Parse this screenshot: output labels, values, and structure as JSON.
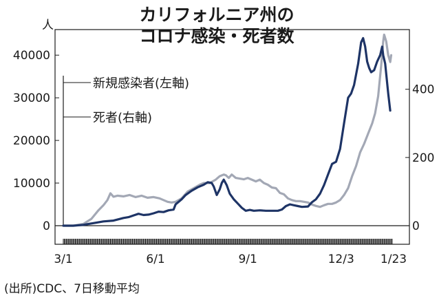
{
  "chart_data": {
    "type": "line",
    "title": [
      "カリフォルニア州の",
      "コロナ感染・死者数"
    ],
    "ylabel_left_unit": "人",
    "y_left_ticks": [
      "0",
      "10000",
      "20000",
      "30000",
      "40000"
    ],
    "y_right_ticks": [
      "0",
      "200",
      "400"
    ],
    "ylim_left": [
      0,
      46000
    ],
    "ylim_right": [
      0,
      575
    ],
    "x_ticks": [
      {
        "label": "3/1",
        "day": 0
      },
      {
        "label": "6/1",
        "day": 92
      },
      {
        "label": "9/1",
        "day": 184
      },
      {
        "label": "12/3",
        "day": 277
      },
      {
        "label": "1/23",
        "day": 328
      }
    ],
    "annotations": [
      "新規感染者(左軸)",
      "死者(右軸)"
    ],
    "source": "(出所)CDC、7日移動平均",
    "series": [
      {
        "name": "新規感染者",
        "axis": "left",
        "color": "#1e3466",
        "points": [
          [
            0,
            0
          ],
          [
            10,
            0
          ],
          [
            20,
            200
          ],
          [
            30,
            600
          ],
          [
            40,
            1000
          ],
          [
            50,
            1200
          ],
          [
            55,
            1500
          ],
          [
            60,
            1800
          ],
          [
            65,
            2000
          ],
          [
            70,
            2400
          ],
          [
            75,
            2800
          ],
          [
            80,
            2500
          ],
          [
            85,
            2600
          ],
          [
            90,
            2900
          ],
          [
            95,
            3300
          ],
          [
            100,
            3200
          ],
          [
            105,
            3600
          ],
          [
            110,
            3800
          ],
          [
            112,
            5000
          ],
          [
            118,
            6200
          ],
          [
            122,
            7200
          ],
          [
            128,
            8200
          ],
          [
            134,
            9000
          ],
          [
            140,
            9600
          ],
          [
            144,
            10200
          ],
          [
            148,
            10000
          ],
          [
            150,
            9200
          ],
          [
            153,
            7200
          ],
          [
            156,
            8500
          ],
          [
            158,
            10000
          ],
          [
            160,
            10800
          ],
          [
            163,
            9500
          ],
          [
            166,
            7500
          ],
          [
            170,
            6200
          ],
          [
            174,
            5200
          ],
          [
            178,
            4200
          ],
          [
            182,
            3500
          ],
          [
            186,
            3700
          ],
          [
            190,
            3500
          ],
          [
            196,
            3600
          ],
          [
            202,
            3500
          ],
          [
            208,
            3500
          ],
          [
            214,
            3500
          ],
          [
            218,
            3800
          ],
          [
            222,
            4600
          ],
          [
            226,
            5000
          ],
          [
            230,
            4800
          ],
          [
            234,
            4600
          ],
          [
            238,
            4400
          ],
          [
            244,
            4500
          ],
          [
            248,
            5500
          ],
          [
            252,
            6200
          ],
          [
            256,
            7500
          ],
          [
            260,
            9500
          ],
          [
            264,
            12000
          ],
          [
            268,
            14500
          ],
          [
            272,
            15000
          ],
          [
            276,
            18000
          ],
          [
            280,
            24000
          ],
          [
            284,
            30000
          ],
          [
            287,
            31000
          ],
          [
            290,
            33000
          ],
          [
            294,
            38000
          ],
          [
            297,
            43000
          ],
          [
            299,
            44000
          ],
          [
            301,
            42000
          ],
          [
            303,
            38500
          ],
          [
            305,
            37000
          ],
          [
            307,
            36000
          ],
          [
            310,
            36500
          ],
          [
            313,
            38500
          ],
          [
            316,
            40000
          ],
          [
            318,
            42000
          ],
          [
            319,
            40000
          ],
          [
            321,
            38000
          ],
          [
            324,
            31000
          ],
          [
            326,
            27000
          ]
        ]
      },
      {
        "name": "死者",
        "axis": "right",
        "color": "#a3a8b5",
        "points": [
          [
            0,
            0
          ],
          [
            10,
            0
          ],
          [
            20,
            5
          ],
          [
            28,
            20
          ],
          [
            35,
            45
          ],
          [
            40,
            60
          ],
          [
            44,
            75
          ],
          [
            47,
            95
          ],
          [
            50,
            85
          ],
          [
            54,
            88
          ],
          [
            60,
            86
          ],
          [
            66,
            90
          ],
          [
            72,
            84
          ],
          [
            78,
            88
          ],
          [
            84,
            82
          ],
          [
            90,
            84
          ],
          [
            96,
            80
          ],
          [
            100,
            75
          ],
          [
            104,
            70
          ],
          [
            108,
            68
          ],
          [
            112,
            70
          ],
          [
            118,
            80
          ],
          [
            124,
            100
          ],
          [
            130,
            110
          ],
          [
            136,
            120
          ],
          [
            140,
            125
          ],
          [
            146,
            125
          ],
          [
            152,
            135
          ],
          [
            156,
            145
          ],
          [
            160,
            150
          ],
          [
            162,
            148
          ],
          [
            165,
            140
          ],
          [
            168,
            150
          ],
          [
            172,
            140
          ],
          [
            176,
            138
          ],
          [
            180,
            136
          ],
          [
            184,
            140
          ],
          [
            188,
            135
          ],
          [
            192,
            130
          ],
          [
            196,
            135
          ],
          [
            200,
            125
          ],
          [
            204,
            120
          ],
          [
            208,
            112
          ],
          [
            212,
            110
          ],
          [
            216,
            96
          ],
          [
            220,
            92
          ],
          [
            224,
            80
          ],
          [
            228,
            75
          ],
          [
            232,
            72
          ],
          [
            236,
            72
          ],
          [
            240,
            70
          ],
          [
            244,
            68
          ],
          [
            248,
            62
          ],
          [
            252,
            58
          ],
          [
            256,
            55
          ],
          [
            260,
            60
          ],
          [
            264,
            64
          ],
          [
            268,
            64
          ],
          [
            272,
            68
          ],
          [
            276,
            75
          ],
          [
            280,
            90
          ],
          [
            284,
            110
          ],
          [
            288,
            145
          ],
          [
            292,
            175
          ],
          [
            296,
            215
          ],
          [
            300,
            240
          ],
          [
            304,
            270
          ],
          [
            308,
            300
          ],
          [
            311,
            330
          ],
          [
            314,
            380
          ],
          [
            317,
            470
          ],
          [
            319,
            540
          ],
          [
            320,
            560
          ],
          [
            322,
            540
          ],
          [
            324,
            500
          ],
          [
            326,
            480
          ],
          [
            327,
            500
          ]
        ]
      }
    ]
  }
}
